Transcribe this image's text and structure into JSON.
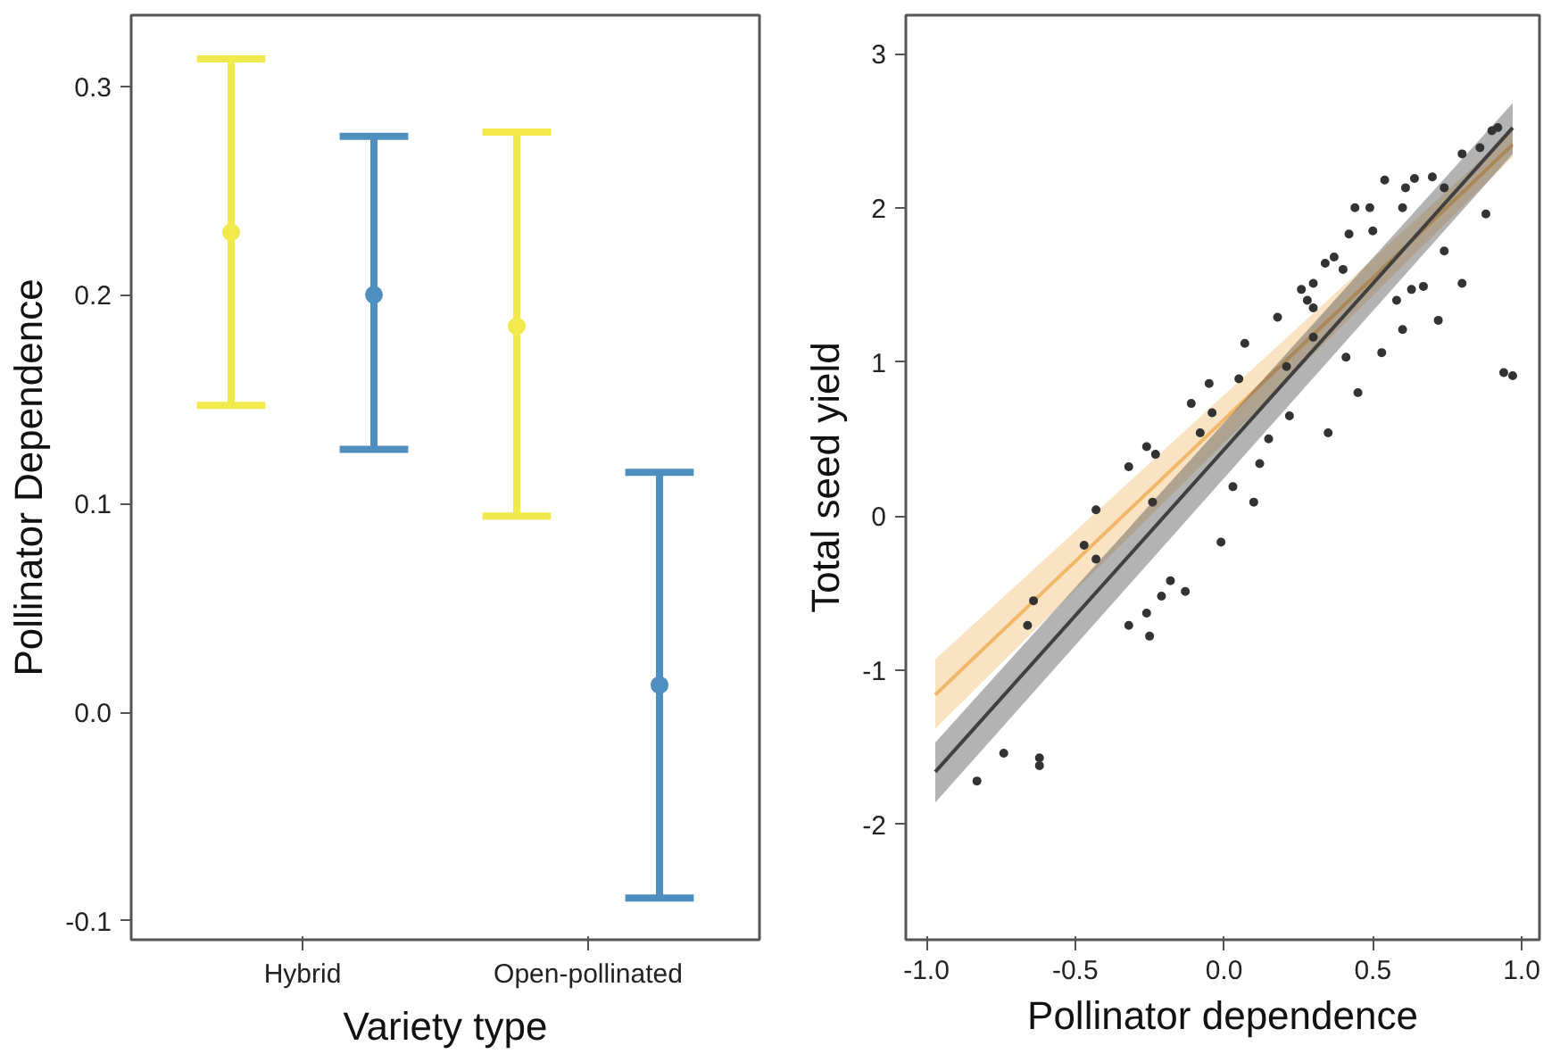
{
  "chart_data": [
    {
      "type": "scatter",
      "xlabel": "Variety type",
      "ylabel": "Pollinator Dependence",
      "categories": [
        "Hybrid",
        "Open-pollinated"
      ],
      "marker": "circle",
      "grid": false,
      "ylim": [
        -0.109,
        0.334
      ],
      "yticks": [
        {
          "value": -0.1,
          "label": "-0.1"
        },
        {
          "value": 0,
          "label": "0.0"
        },
        0.1,
        0.2,
        0.3
      ],
      "series": [
        {
          "color": "#f2ea4c",
          "values": [
            0.23,
            0.185
          ],
          "errors": [
            [
              0.147,
              0.313
            ],
            [
              0.094,
              0.278
            ]
          ]
        },
        {
          "color": "#4f8fc0",
          "values": [
            0.2,
            0.013
          ],
          "errors": [
            [
              0.126,
              0.276
            ],
            [
              -0.089,
              0.115
            ]
          ]
        }
      ]
    },
    {
      "type": "scatter",
      "xlabel": "Pollinator dependence",
      "ylabel": "Total seed yield",
      "marker": "circle",
      "grid": false,
      "xlim": [
        -1.069,
        1.06
      ],
      "xticks": [
        {
          "value": -1,
          "label": "-1.0"
        },
        {
          "value": -0.5,
          "label": "-0.5"
        },
        {
          "value": 0,
          "label": "0.0"
        },
        {
          "value": 0.5,
          "label": "0.5"
        },
        {
          "value": 1,
          "label": "1.0"
        }
      ],
      "ylim": [
        -2.75,
        3.25
      ],
      "yticks": [
        -2,
        -1,
        0,
        1,
        2,
        3
      ],
      "series": [
        {
          "type": "line",
          "marker": "none",
          "color": "#f0b868",
          "x": [
            -0.97,
            0.97
          ],
          "values": [
            -1.16,
            2.41
          ],
          "lower": [
            -1.38,
            2.33
          ],
          "upper": [
            -0.93,
            2.5
          ]
        },
        {
          "type": "line",
          "marker": "none",
          "color": "#404040",
          "x": [
            -0.97,
            0.97
          ],
          "values": [
            -1.66,
            2.52
          ],
          "lower": [
            -1.86,
            2.35
          ],
          "upper": [
            -1.47,
            2.68
          ]
        },
        {
          "type": "scatter",
          "color": "#333333",
          "x": [
            -0.83,
            -0.74,
            -0.62,
            -0.62,
            -0.64,
            -0.66,
            -0.47,
            -0.43,
            -0.43,
            -0.32,
            -0.26,
            -0.23,
            -0.32,
            -0.25,
            -0.21,
            -0.18,
            -0.13,
            -0.26,
            -0.24,
            -0.11,
            -0.08,
            -0.04,
            -0.05,
            -0.01,
            0.03,
            0.05,
            0.07,
            0.12,
            0.1,
            0.15,
            0.22,
            0.18,
            0.26,
            0.28,
            0.3,
            0.34,
            0.37,
            0.42,
            0.44,
            0.49,
            0.54,
            0.61,
            0.64,
            0.35,
            0.41,
            0.45,
            0.53,
            0.58,
            0.6,
            0.63,
            0.72,
            0.74,
            0.8,
            0.88,
            0.94,
            0.97,
            0.67,
            0.21,
            0.3,
            0.74,
            0.86,
            0.92,
            0.5,
            0.6,
            0.7,
            0.8,
            0.9,
            0.4,
            0.3
          ],
          "values": [
            -1.72,
            -1.54,
            -1.57,
            -1.62,
            -0.55,
            -0.71,
            -0.19,
            -0.28,
            0.04,
            0.32,
            0.45,
            0.4,
            -0.71,
            -0.78,
            -0.52,
            -0.42,
            -0.49,
            -0.63,
            0.09,
            0.73,
            0.54,
            0.67,
            0.86,
            -0.17,
            0.19,
            0.89,
            1.12,
            0.34,
            0.09,
            0.5,
            0.65,
            1.29,
            1.47,
            1.4,
            1.51,
            1.64,
            1.68,
            1.83,
            2.0,
            2.0,
            2.18,
            2.13,
            2.19,
            0.54,
            1.03,
            0.8,
            1.06,
            1.4,
            1.21,
            1.47,
            1.27,
            1.72,
            1.51,
            1.96,
            0.93,
            0.91,
            1.49,
            0.97,
            1.16,
            2.13,
            2.39,
            2.52,
            1.85,
            2.0,
            2.2,
            2.35,
            2.5,
            1.6,
            1.35
          ]
        }
      ]
    }
  ]
}
